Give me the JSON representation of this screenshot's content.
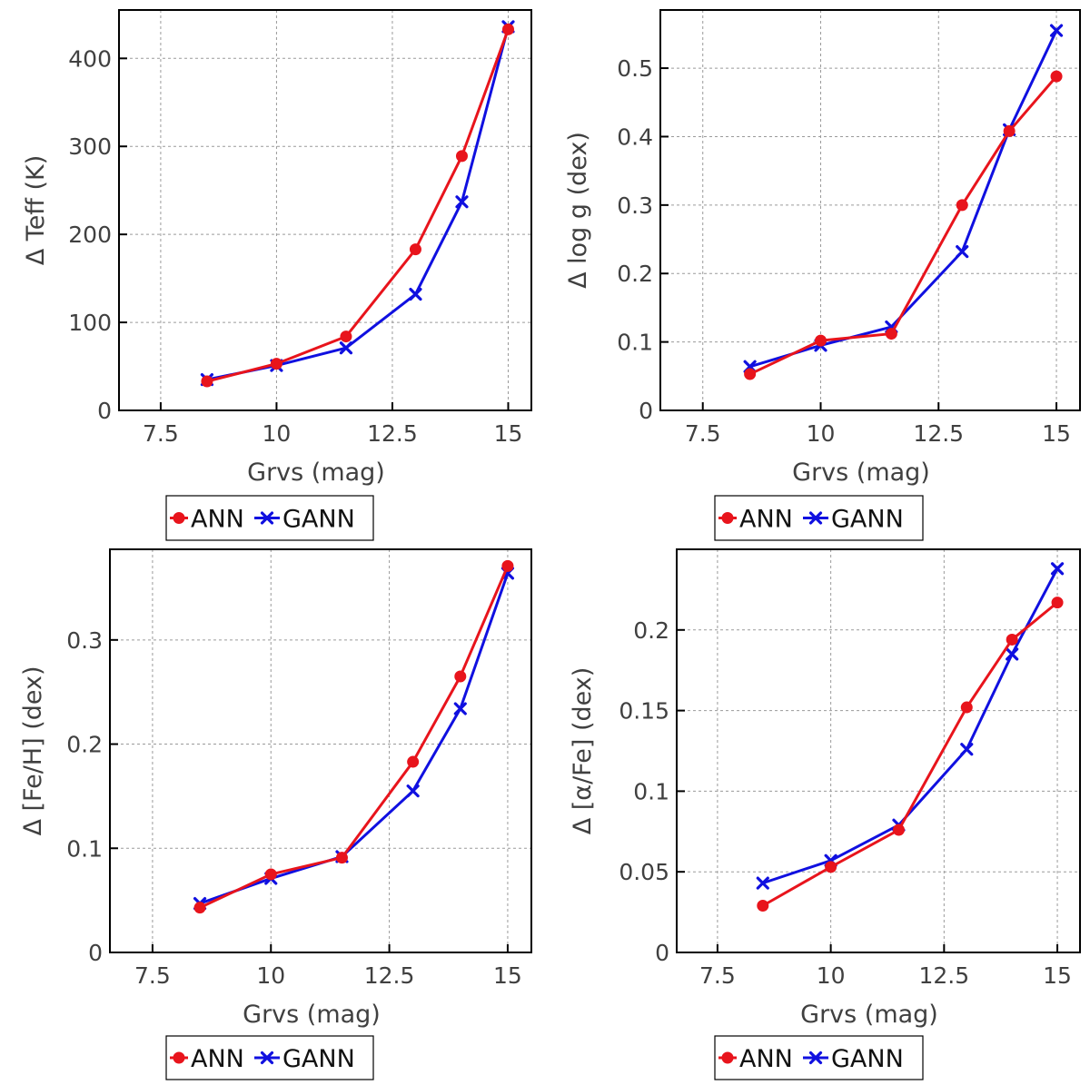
{
  "colors": {
    "ann": "#e8141c",
    "gann": "#1010e0",
    "grid": "#9a9a9a",
    "axis": "#000000",
    "text": "#404040"
  },
  "legend": {
    "ann_label": "ANN",
    "gann_label": "GANN",
    "ann_marker": "circle",
    "gann_marker": "x"
  },
  "chart_data": [
    {
      "type": "line",
      "xlabel": "Grvs (mag)",
      "ylabel": "Δ Teff (K)",
      "xlim": [
        6.6,
        15.5
      ],
      "ylim": [
        0,
        455
      ],
      "xticks": [
        7.5,
        10,
        12.5,
        15
      ],
      "xtick_labels": [
        "7.5",
        "10",
        "12.5",
        "15"
      ],
      "yticks": [
        0,
        100,
        200,
        300,
        400
      ],
      "ytick_labels": [
        "0",
        "100",
        "200",
        "300",
        "400"
      ],
      "grid": true,
      "legend_position": "below",
      "x": [
        8.5,
        10,
        11.5,
        13,
        14,
        15
      ],
      "series": [
        {
          "name": "ANN",
          "marker": "circle",
          "values": [
            33,
            53,
            84,
            183,
            289,
            433
          ]
        },
        {
          "name": "GANN",
          "marker": "x",
          "values": [
            35,
            51,
            71,
            132,
            237,
            436
          ]
        }
      ]
    },
    {
      "type": "line",
      "xlabel": "Grvs (mag)",
      "ylabel": "Δ log g (dex)",
      "xlim": [
        6.6,
        15.5
      ],
      "ylim": [
        0,
        0.585
      ],
      "xticks": [
        7.5,
        10,
        12.5,
        15
      ],
      "xtick_labels": [
        "7.5",
        "10",
        "12.5",
        "15"
      ],
      "yticks": [
        0,
        0.1,
        0.2,
        0.3,
        0.4,
        0.5
      ],
      "ytick_labels": [
        "0",
        "0.1",
        "0.2",
        "0.3",
        "0.4",
        "0.5"
      ],
      "grid": true,
      "legend_position": "below",
      "x": [
        8.5,
        10,
        11.5,
        13,
        14,
        15
      ],
      "series": [
        {
          "name": "ANN",
          "marker": "circle",
          "values": [
            0.053,
            0.102,
            0.112,
            0.3,
            0.408,
            0.488
          ]
        },
        {
          "name": "GANN",
          "marker": "x",
          "values": [
            0.064,
            0.095,
            0.122,
            0.232,
            0.41,
            0.555
          ]
        }
      ]
    },
    {
      "type": "line",
      "xlabel": "Grvs (mag)",
      "ylabel": "Δ [Fe/H] (dex)",
      "xlim": [
        6.6,
        15.5
      ],
      "ylim": [
        0,
        0.387
      ],
      "xticks": [
        7.5,
        10,
        12.5,
        15
      ],
      "xtick_labels": [
        "7.5",
        "10",
        "12.5",
        "15"
      ],
      "yticks": [
        0,
        0.1,
        0.2,
        0.3
      ],
      "ytick_labels": [
        "0",
        "0.1",
        "0.2",
        "0.3"
      ],
      "grid": true,
      "legend_position": "below",
      "x": [
        8.5,
        10,
        11.5,
        13,
        14,
        15
      ],
      "series": [
        {
          "name": "ANN",
          "marker": "circle",
          "values": [
            0.043,
            0.075,
            0.091,
            0.183,
            0.265,
            0.371
          ]
        },
        {
          "name": "GANN",
          "marker": "x",
          "values": [
            0.047,
            0.071,
            0.092,
            0.155,
            0.234,
            0.364
          ]
        }
      ]
    },
    {
      "type": "line",
      "xlabel": "Grvs (mag)",
      "ylabel": "Δ [α/Fe] (dex)",
      "xlim": [
        6.6,
        15.5
      ],
      "ylim": [
        0,
        0.25
      ],
      "xticks": [
        7.5,
        10,
        12.5,
        15
      ],
      "xtick_labels": [
        "7.5",
        "10",
        "12.5",
        "15"
      ],
      "yticks": [
        0,
        0.05,
        0.1,
        0.15,
        0.2
      ],
      "ytick_labels": [
        "0",
        "0.05",
        "0.1",
        "0.15",
        "0.2"
      ],
      "grid": true,
      "legend_position": "below",
      "x": [
        8.5,
        10,
        11.5,
        13,
        14,
        15
      ],
      "series": [
        {
          "name": "ANN",
          "marker": "circle",
          "values": [
            0.029,
            0.053,
            0.076,
            0.152,
            0.194,
            0.217
          ]
        },
        {
          "name": "GANN",
          "marker": "x",
          "values": [
            0.043,
            0.057,
            0.079,
            0.126,
            0.185,
            0.238
          ]
        }
      ]
    }
  ]
}
